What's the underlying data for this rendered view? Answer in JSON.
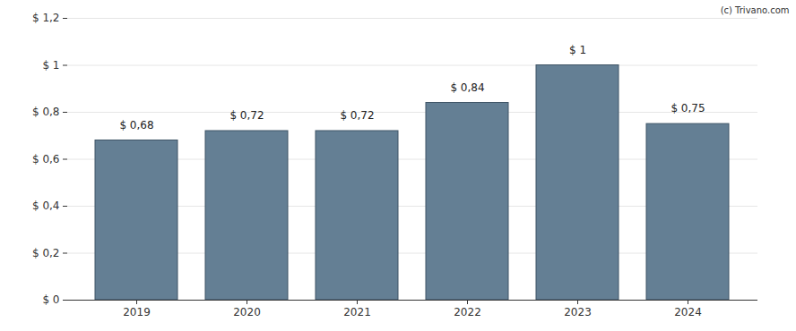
{
  "chart_data": {
    "type": "bar",
    "annotations": [
      "(c) Trivano.com"
    ],
    "categories": [
      "2019",
      "2020",
      "2021",
      "2022",
      "2023",
      "2024"
    ],
    "values": [
      0.68,
      0.72,
      0.72,
      0.84,
      1,
      0.75
    ],
    "value_labels": [
      "$ 0,68",
      "$ 0,72",
      "$ 0,72",
      "$ 0,84",
      "$ 1",
      "$ 0,75"
    ],
    "data_labels": true,
    "color": "#647f94",
    "ylim": [
      0,
      1.2
    ],
    "yticks": [
      {
        "value": 0,
        "label": "$ 0"
      },
      {
        "value": 0.2,
        "label": "$ 0,2"
      },
      {
        "value": 0.4,
        "label": "$ 0,4"
      },
      {
        "value": 0.6,
        "label": "$ 0,6"
      },
      {
        "value": 0.8,
        "label": "$ 0,8"
      },
      {
        "value": 1,
        "label": "$ 1"
      },
      {
        "value": 1.2,
        "label": "$ 1,2"
      }
    ],
    "grid": true
  }
}
